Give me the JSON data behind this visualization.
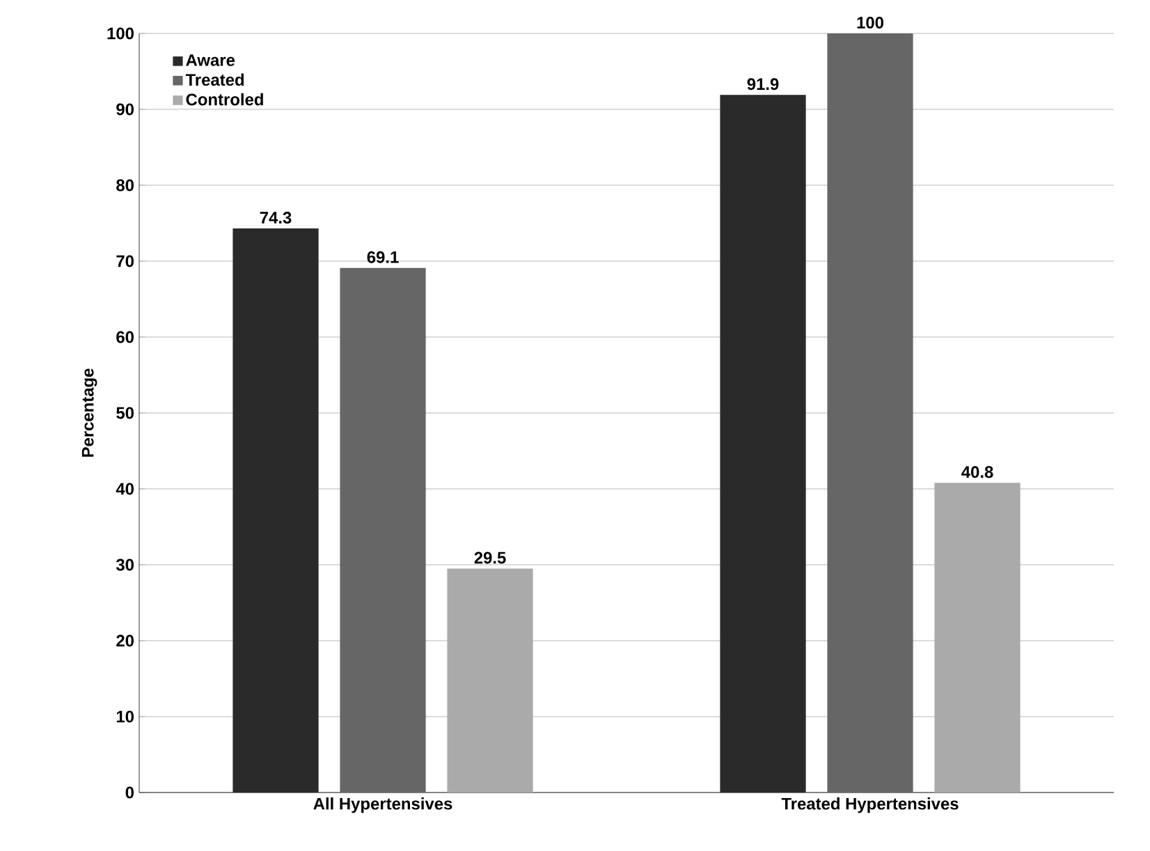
{
  "chart_data": {
    "type": "bar",
    "ylabel": "Percentage",
    "categories": [
      "All Hypertensives",
      "Treated Hypertensives"
    ],
    "series": [
      {
        "name": "Aware",
        "color": "#2a2a2a",
        "values": [
          74.3,
          91.9
        ]
      },
      {
        "name": "Treated",
        "color": "#666666",
        "values": [
          69.1,
          100
        ]
      },
      {
        "name": "Controled",
        "color": "#aaaaaa",
        "values": [
          29.5,
          40.8
        ]
      }
    ],
    "ylim": [
      0,
      100
    ],
    "yticks": [
      0,
      10,
      20,
      30,
      40,
      50,
      60,
      70,
      80,
      90,
      100
    ],
    "grid": "y",
    "legend": "top left",
    "data_labels": true
  }
}
